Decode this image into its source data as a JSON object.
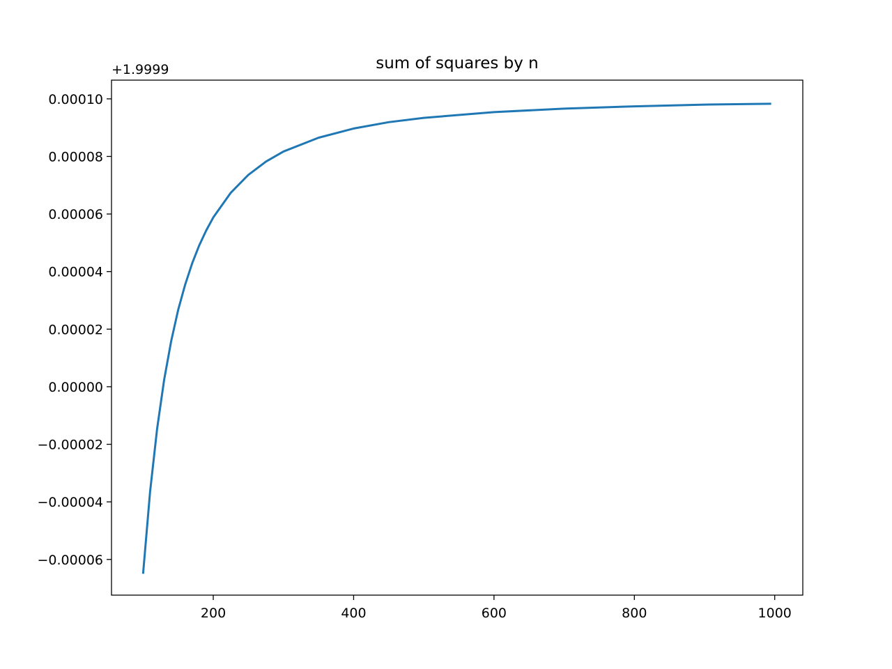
{
  "chart_data": {
    "type": "line",
    "title": "sum of squares by n",
    "y_offset_text": "+1.9999",
    "x": [
      100,
      110,
      120,
      130,
      140,
      150,
      160,
      170,
      180,
      190,
      200,
      225,
      250,
      275,
      300,
      350,
      400,
      450,
      500,
      600,
      700,
      800,
      900,
      995
    ],
    "series": [
      {
        "color": "#1f77b4",
        "values": [
          -6.5e-05,
          -3.64e-05,
          -1.46e-05,
          2.4e-06,
          1.58e-05,
          2.67e-05,
          3.55e-05,
          4.29e-05,
          4.91e-05,
          5.43e-05,
          5.88e-05,
          6.74e-05,
          7.36e-05,
          7.82e-05,
          8.17e-05,
          8.65e-05,
          8.97e-05,
          9.19e-05,
          9.34e-05,
          9.54e-05,
          9.66e-05,
          9.74e-05,
          9.8e-05,
          9.83e-05
        ]
      }
    ],
    "xlim": [
      55,
      1040
    ],
    "xticks": [
      200,
      400,
      600,
      800,
      1000
    ],
    "ylim": [
      -7.24e-05,
      0.0001065
    ],
    "yticks": [
      {
        "value": -6e-05,
        "label": "−0.00006"
      },
      {
        "value": -4e-05,
        "label": "−0.00004"
      },
      {
        "value": -2e-05,
        "label": "−0.00002"
      },
      {
        "value": 0,
        "label": "0.00000"
      },
      {
        "value": 2e-05,
        "label": "0.00002"
      },
      {
        "value": 4e-05,
        "label": "0.00004"
      },
      {
        "value": 6e-05,
        "label": "0.00006"
      },
      {
        "value": 8e-05,
        "label": "0.00008"
      },
      {
        "value": 0.0001,
        "label": "0.00010"
      }
    ],
    "grid": false
  }
}
